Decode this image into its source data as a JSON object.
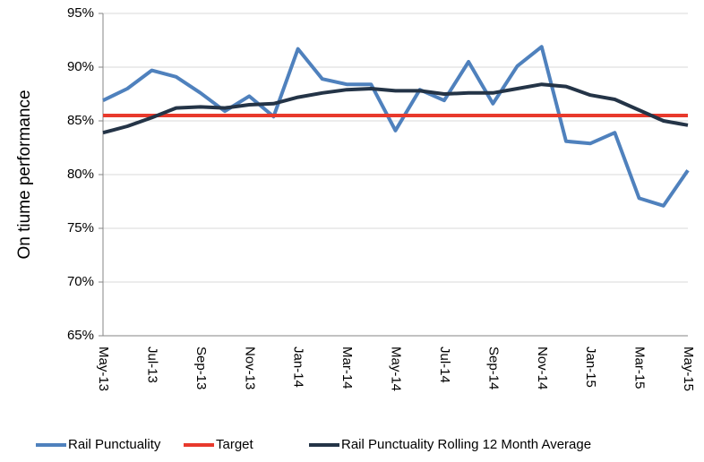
{
  "chart_data": {
    "type": "line",
    "y_label": "On tiume performance",
    "categories": [
      "May-13",
      null,
      "Jul-13",
      null,
      "Sep-13",
      null,
      "Nov-13",
      null,
      "Jan-14",
      null,
      "Mar-14",
      null,
      "May-14",
      null,
      "Jul-14",
      null,
      "Sep-14",
      null,
      "Nov-14",
      null,
      "Jan-15",
      null,
      "Mar-15",
      null,
      "May-15"
    ],
    "series": [
      {
        "name": "Rail Punctuality",
        "color": "#4f81bd",
        "values": [
          86.9,
          88.0,
          89.7,
          89.1,
          87.6,
          85.9,
          87.3,
          85.4,
          91.7,
          88.9,
          88.4,
          88.4,
          84.1,
          87.9,
          86.9,
          90.5,
          86.6,
          90.1,
          91.9,
          83.1,
          82.9,
          83.9,
          77.8,
          77.1,
          80.4
        ]
      },
      {
        "name": "Target",
        "color": "#e8392c",
        "values": [
          85.5,
          85.5,
          85.5,
          85.5,
          85.5,
          85.5,
          85.5,
          85.5,
          85.5,
          85.5,
          85.5,
          85.5,
          85.5,
          85.5,
          85.5,
          85.5,
          85.5,
          85.5,
          85.5,
          85.5,
          85.5,
          85.5,
          85.5,
          85.5,
          85.5
        ]
      },
      {
        "name": "Rail Punctuality Rolling 12 Month Average",
        "color": "#243447",
        "values": [
          83.9,
          84.5,
          85.3,
          86.2,
          86.3,
          86.2,
          86.5,
          86.6,
          87.2,
          87.6,
          87.9,
          88.0,
          87.8,
          87.8,
          87.5,
          87.6,
          87.6,
          88.0,
          88.4,
          88.2,
          87.4,
          87.0,
          86.0,
          85.0,
          84.6
        ]
      }
    ],
    "ylim": [
      65,
      95
    ],
    "yticks": [
      {
        "value": 65,
        "label": "65%"
      },
      {
        "value": 70,
        "label": "70%"
      },
      {
        "value": 75,
        "label": "75%"
      },
      {
        "value": 80,
        "label": "80%"
      },
      {
        "value": 85,
        "label": "85%"
      },
      {
        "value": 90,
        "label": "90%"
      },
      {
        "value": 95,
        "label": "95%"
      }
    ],
    "grid": true,
    "legend": "bottom"
  }
}
